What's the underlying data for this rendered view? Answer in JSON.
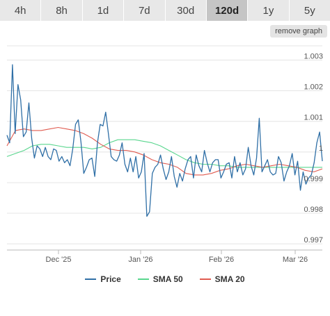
{
  "timeframe_tabs": [
    "4h",
    "8h",
    "1d",
    "7d",
    "30d",
    "120d",
    "1y",
    "5y"
  ],
  "active_tab": "120d",
  "remove_graph_label": "remove graph",
  "colors": {
    "price": "#2f6fa6",
    "sma50": "#58d68d",
    "sma20": "#e05a4f",
    "grid": "#e4e4e4"
  },
  "chart_data": {
    "type": "line",
    "ylim": [
      0.9968,
      1.0036
    ],
    "yticks": [
      "0.997",
      "0.998",
      "0.999",
      "1",
      "1.001",
      "1.002",
      "1.003"
    ],
    "xticks": [
      "Dec '25",
      "Jan '26",
      "Feb '26",
      "Mar '26"
    ],
    "series": [
      {
        "name": "Price",
        "values": [
          1.00055,
          1.0003,
          1.00285,
          1.0006,
          1.0022,
          1.0017,
          1.0005,
          1.00065,
          1.0016,
          1.00045,
          0.9998,
          1.0002,
          1.0001,
          0.99985,
          1.00015,
          0.99985,
          0.99975,
          1.0001,
          1.00005,
          0.9997,
          0.99985,
          0.99965,
          0.99975,
          0.99955,
          1.0001,
          1.0009,
          1.00105,
          1.0003,
          0.9993,
          0.9995,
          0.99975,
          0.9998,
          0.9992,
          1.0003,
          1.0009,
          1.00085,
          1.0013,
          1.0006,
          0.99985,
          0.99975,
          0.9997,
          0.9999,
          1.0003,
          0.9996,
          0.99935,
          0.9998,
          0.99935,
          0.99985,
          0.99915,
          0.99935,
          0.99995,
          0.9979,
          0.99805,
          0.9993,
          0.9995,
          0.9996,
          0.9999,
          0.99945,
          0.9991,
          0.99935,
          0.99985,
          0.9992,
          0.99885,
          0.9993,
          0.99905,
          0.99945,
          0.99975,
          0.99985,
          0.99915,
          0.9999,
          0.99955,
          0.99935,
          1.00005,
          0.99965,
          0.99935,
          0.99965,
          0.99975,
          0.99975,
          0.99915,
          0.99935,
          0.9996,
          0.99965,
          0.99915,
          0.99985,
          0.99935,
          0.99965,
          0.99925,
          0.99945,
          1.00015,
          0.99955,
          0.99925,
          0.9998,
          1.0011,
          0.99935,
          0.99955,
          0.99975,
          0.99935,
          0.99925,
          0.9993,
          0.99985,
          0.99965,
          0.99905,
          0.99935,
          0.99955,
          0.99995,
          0.99925,
          0.9997,
          0.99875,
          0.99935,
          0.99895,
          0.99915,
          0.99925,
          0.99965,
          1.0003,
          1.00065,
          0.9997
        ],
        "color": "#2f6fa6"
      },
      {
        "name": "SMA 50",
        "values": [
          0.99985,
          0.99995,
          1.00005,
          1.0002,
          1.00025,
          1.00025,
          1.0002,
          1.00015,
          1.00015,
          1.00015,
          1.0001,
          1.00015,
          1.0003,
          1.0004,
          1.0004,
          1.0004,
          1.00035,
          1.0003,
          1.0002,
          1.00005,
          0.9999,
          0.99975,
          0.99965,
          0.9996,
          0.9996,
          0.99955,
          0.99955,
          0.9995,
          0.9995,
          0.9995,
          0.9995,
          0.9995,
          0.9995,
          0.9995,
          0.9995,
          0.9995,
          0.9995,
          0.9995
        ],
        "color": "#58d68d"
      },
      {
        "name": "SMA 20",
        "values": [
          1.0002,
          1.0007,
          1.00075,
          1.0007,
          1.0007,
          1.00075,
          1.0008,
          1.00075,
          1.0007,
          1.0006,
          1.00045,
          1.00025,
          1.0001,
          1.00005,
          1.00005,
          1.0,
          0.9999,
          0.99975,
          0.99965,
          0.9996,
          0.9995,
          0.9993,
          0.99925,
          0.99925,
          0.9993,
          0.9994,
          0.99945,
          0.99955,
          0.9996,
          0.99955,
          0.9995,
          0.99955,
          0.9996,
          0.99955,
          0.9995,
          0.9994,
          0.99935,
          0.99945
        ],
        "color": "#e05a4f"
      }
    ]
  }
}
